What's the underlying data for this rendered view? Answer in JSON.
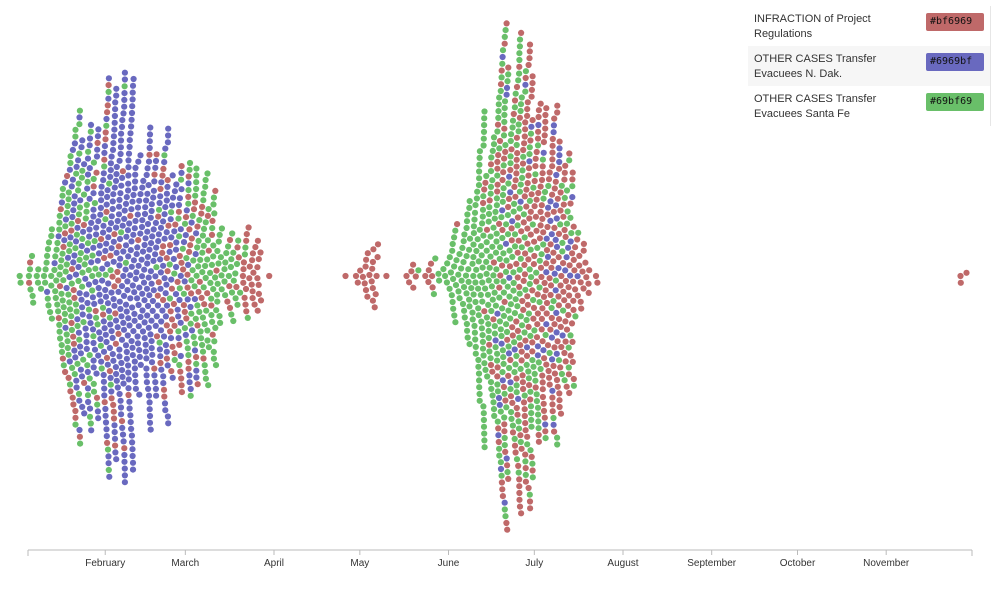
{
  "chart_data": {
    "type": "scatter",
    "subtype": "beeswarm-timeline",
    "title": "",
    "xlabel": "",
    "ylabel": "",
    "x_axis_ticks": [
      "February",
      "March",
      "April",
      "May",
      "June",
      "July",
      "August",
      "September",
      "October",
      "November"
    ],
    "x_axis_tick_dates": [
      "1943-02-01",
      "1943-03-01",
      "1943-04-01",
      "1943-05-01",
      "1943-06-01",
      "1943-07-01",
      "1943-08-01",
      "1943-09-01",
      "1943-10-01",
      "1943-11-01"
    ],
    "x_range": [
      "1943-01-05",
      "1943-12-01"
    ],
    "grid": false,
    "legend_position": "top-right",
    "series": [
      {
        "name": "INFRACTION of Project Regulations",
        "color": "#bf6969",
        "clusters": [
          {
            "date": "1943-01-06",
            "count": 2
          },
          {
            "date": "1943-01-20",
            "count": 25
          },
          {
            "date": "1943-02-02",
            "count": 40
          },
          {
            "date": "1943-02-20",
            "count": 12
          },
          {
            "date": "1943-03-01",
            "count": 70
          },
          {
            "date": "1943-03-23",
            "count": 38
          },
          {
            "date": "1943-05-03",
            "count": 24
          },
          {
            "date": "1943-05-19",
            "count": 6
          },
          {
            "date": "1943-05-26",
            "count": 6
          },
          {
            "date": "1943-06-29",
            "count": 220
          },
          {
            "date": "1943-07-07",
            "count": 140
          },
          {
            "date": "1943-11-28",
            "count": 3
          }
        ]
      },
      {
        "name": "OTHER CASES Transfer Evacuees N. Dak.",
        "color": "#6969bf",
        "clusters": [
          {
            "date": "1943-01-28",
            "count": 150
          },
          {
            "date": "1943-02-10",
            "count": 330
          },
          {
            "date": "1943-02-24",
            "count": 70
          },
          {
            "date": "1943-06-22",
            "count": 25
          },
          {
            "date": "1943-07-08",
            "count": 45
          }
        ]
      },
      {
        "name": "OTHER CASES Transfer Evacuees Santa Fe",
        "color": "#69bf69",
        "clusters": [
          {
            "date": "1943-01-07",
            "count": 2
          },
          {
            "date": "1943-01-19",
            "count": 160
          },
          {
            "date": "1943-03-08",
            "count": 140
          },
          {
            "date": "1943-06-16",
            "count": 300
          },
          {
            "date": "1943-06-29",
            "count": 100
          },
          {
            "date": "1943-07-12",
            "count": 20
          }
        ]
      }
    ]
  },
  "legend": [
    {
      "label": "INFRACTION of Project Regulations",
      "chip_text": "#bf6969",
      "color": "#bf6969"
    },
    {
      "label": "OTHER CASES Transfer Evacuees N. Dak.",
      "chip_text": "#6969bf",
      "color": "#6969bf"
    },
    {
      "label": "OTHER CASES Transfer Evacuees Santa Fe",
      "chip_text": "#69bf69",
      "color": "#69bf69"
    }
  ]
}
